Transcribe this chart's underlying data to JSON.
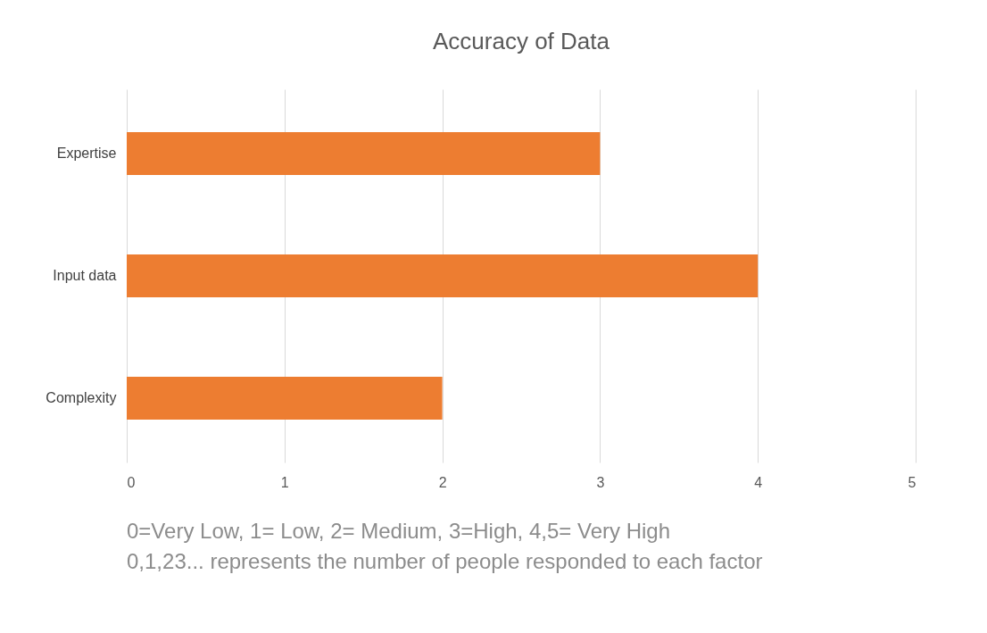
{
  "chart_data": {
    "type": "bar",
    "orientation": "horizontal",
    "title": "Accuracy of Data",
    "categories": [
      "Expertise",
      "Input data",
      "Complexity"
    ],
    "values": [
      3,
      4,
      2
    ],
    "color": "#ed7d31",
    "xlim": [
      0,
      5
    ],
    "xticks": [
      0,
      1,
      2,
      3,
      4,
      5
    ],
    "grid": "x",
    "annotations": [
      "0=Very Low, 1= Low, 2= Medium, 3=High, 4,5= Very High",
      "0,1,23... represents the number of people responded to each factor"
    ]
  }
}
